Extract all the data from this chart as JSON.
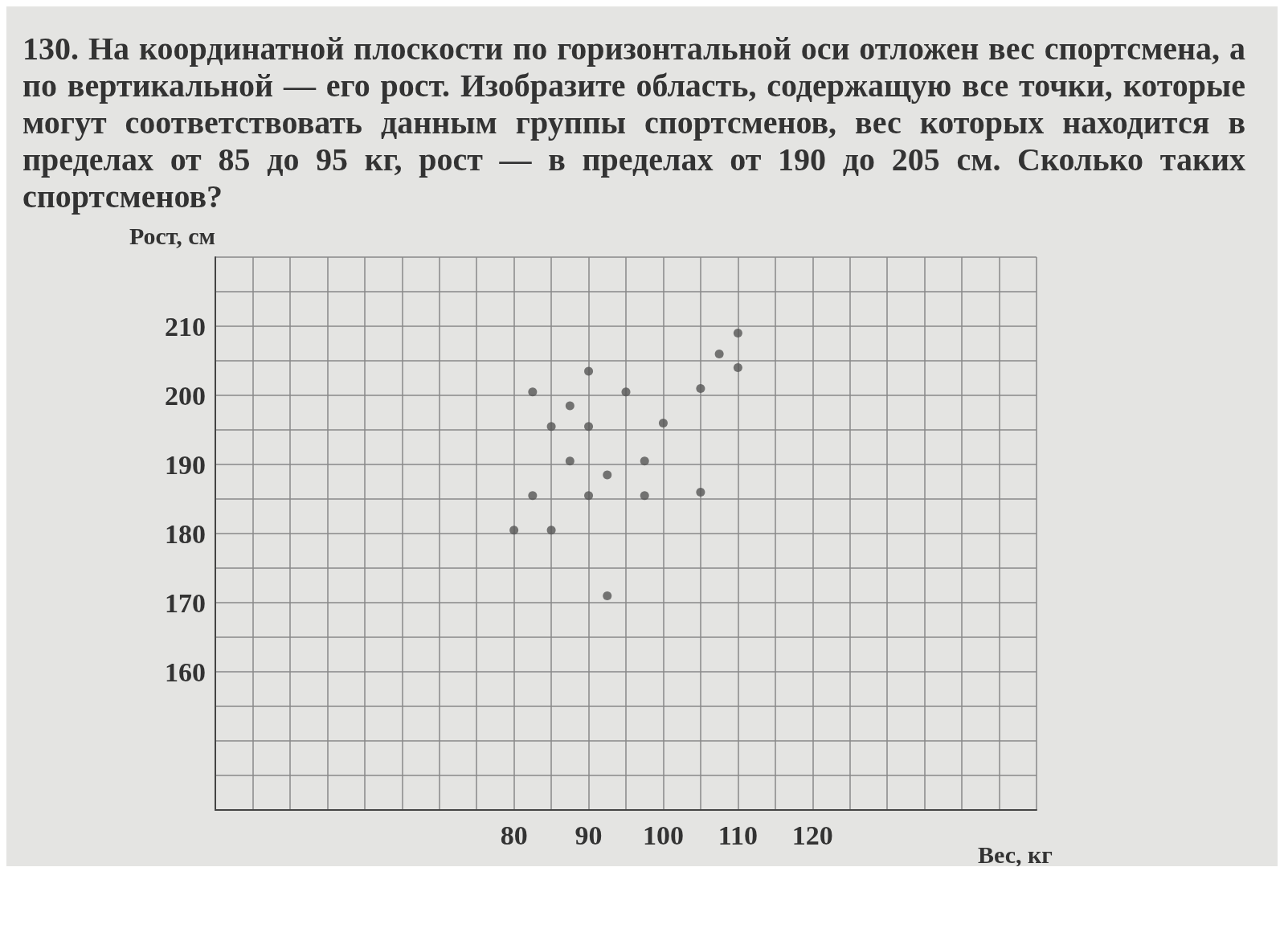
{
  "chart_data": {
    "type": "scatter",
    "title": "130. На координатной плоскости по горизонтальной оси отложен вес спортсмена, а по вертикальной — его рост. Изобразите область, содержащую все точки, которые могут соответствовать данным группы спортсменов, вес которых находится в пределах от 85 до 95 кг, рост — в пределах от 190 до 205 см. Сколько таких спортсменов?",
    "xlabel": "Вес, кг",
    "ylabel": "Рост, см",
    "x": [
      82.5,
      90,
      87.5,
      85,
      90,
      95,
      100,
      105,
      107.5,
      110,
      110,
      87.5,
      97.5,
      92.5,
      82.5,
      90,
      97.5,
      105,
      80,
      85,
      92.5
    ],
    "values": [
      200.5,
      203.5,
      198.5,
      195.5,
      195.5,
      200.5,
      196,
      201,
      206,
      209,
      204,
      190.5,
      190.5,
      188.5,
      185.5,
      185.5,
      185.5,
      186,
      180.5,
      180.5,
      171
    ],
    "color": "#555555",
    "marker": "circle",
    "xlim": [
      40,
      150
    ],
    "ylim": [
      140,
      220
    ],
    "xticks": [
      80,
      90,
      100,
      110,
      120
    ],
    "yticks": [
      160,
      170,
      180,
      190,
      200,
      210
    ],
    "grid": true
  }
}
